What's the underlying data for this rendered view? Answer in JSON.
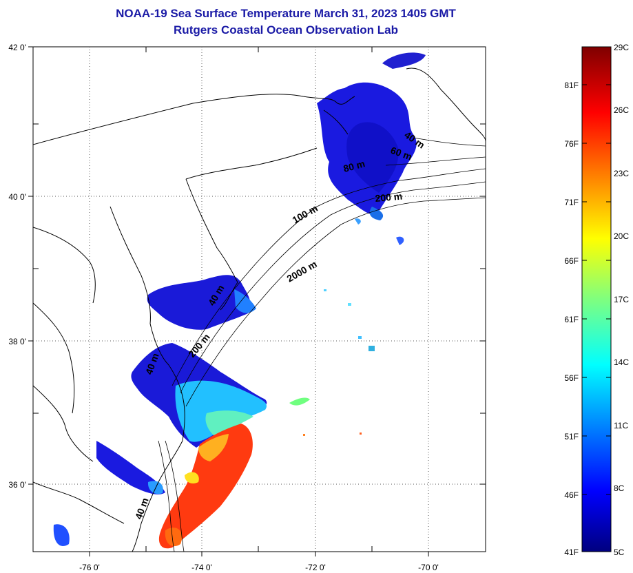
{
  "title": "NOAA-19 Sea Surface Temperature March 31, 2023 1405 GMT",
  "subtitle": "Rutgers Coastal Ocean Observation Lab",
  "map": {
    "lat_labels": [
      "42 0'",
      "40 0'",
      "38 0'",
      "36 0'"
    ],
    "lon_labels": [
      "-76 0'",
      "-74 0'",
      "-72 0'",
      "-70 0'"
    ],
    "lat_range": [
      35,
      42
    ],
    "lon_range": [
      -77,
      -69
    ],
    "grid": "dotted",
    "contour_labels": [
      "40 m",
      "60 m",
      "80 m",
      "200 m",
      "100 m",
      "2000 m",
      "40 m",
      "200 m",
      "40 m",
      "40 m"
    ]
  },
  "colorbar": {
    "min_c": 5,
    "max_c": 29,
    "celsius_labels": [
      "29C",
      "26C",
      "23C",
      "20C",
      "17C",
      "14C",
      "11C",
      "8C",
      "5C"
    ],
    "fahrenheit_labels": [
      "81F",
      "76F",
      "71F",
      "66F",
      "61F",
      "56F",
      "51F",
      "46F",
      "41F"
    ],
    "colors": [
      "#00007f",
      "#0000ff",
      "#007fff",
      "#00ffff",
      "#7fff7f",
      "#ffff00",
      "#ff7f00",
      "#ff0000",
      "#7f0000"
    ]
  }
}
